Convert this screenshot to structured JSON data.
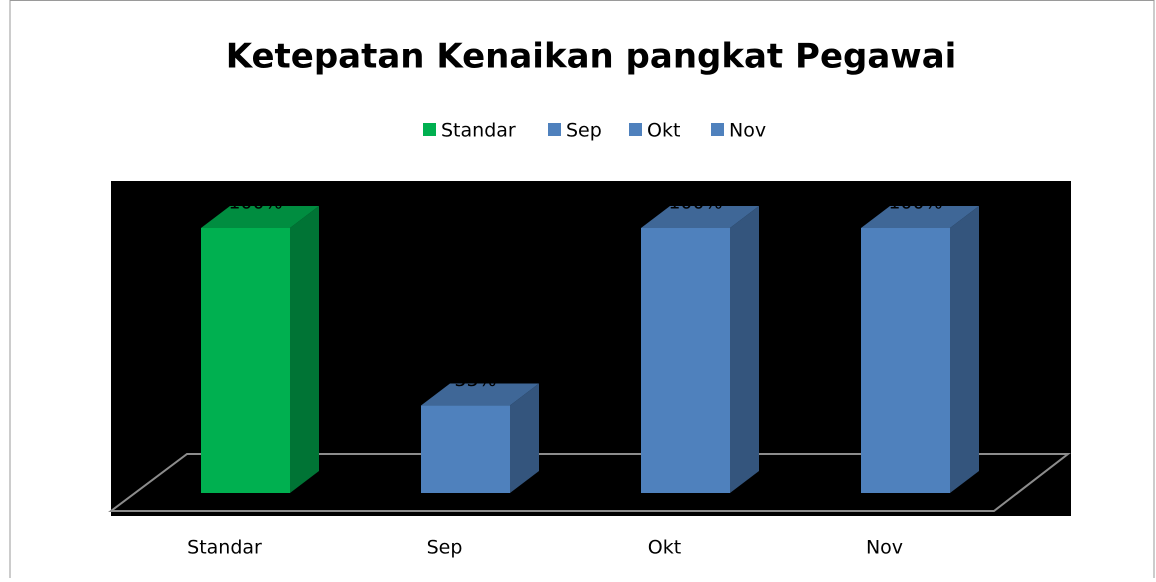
{
  "chart_data": {
    "type": "bar3d",
    "title": "Ketepatan Kenaikan pangkat Pegawai",
    "categories": [
      "Standar",
      "Sep",
      "Okt",
      "Nov"
    ],
    "values": [
      100,
      33,
      100,
      100
    ],
    "value_labels": [
      "100%",
      "33%",
      "100%",
      "100%"
    ],
    "colors": [
      "#00b050",
      "#4f81bd",
      "#4f81bd",
      "#4f81bd"
    ],
    "legend": "top"
  }
}
